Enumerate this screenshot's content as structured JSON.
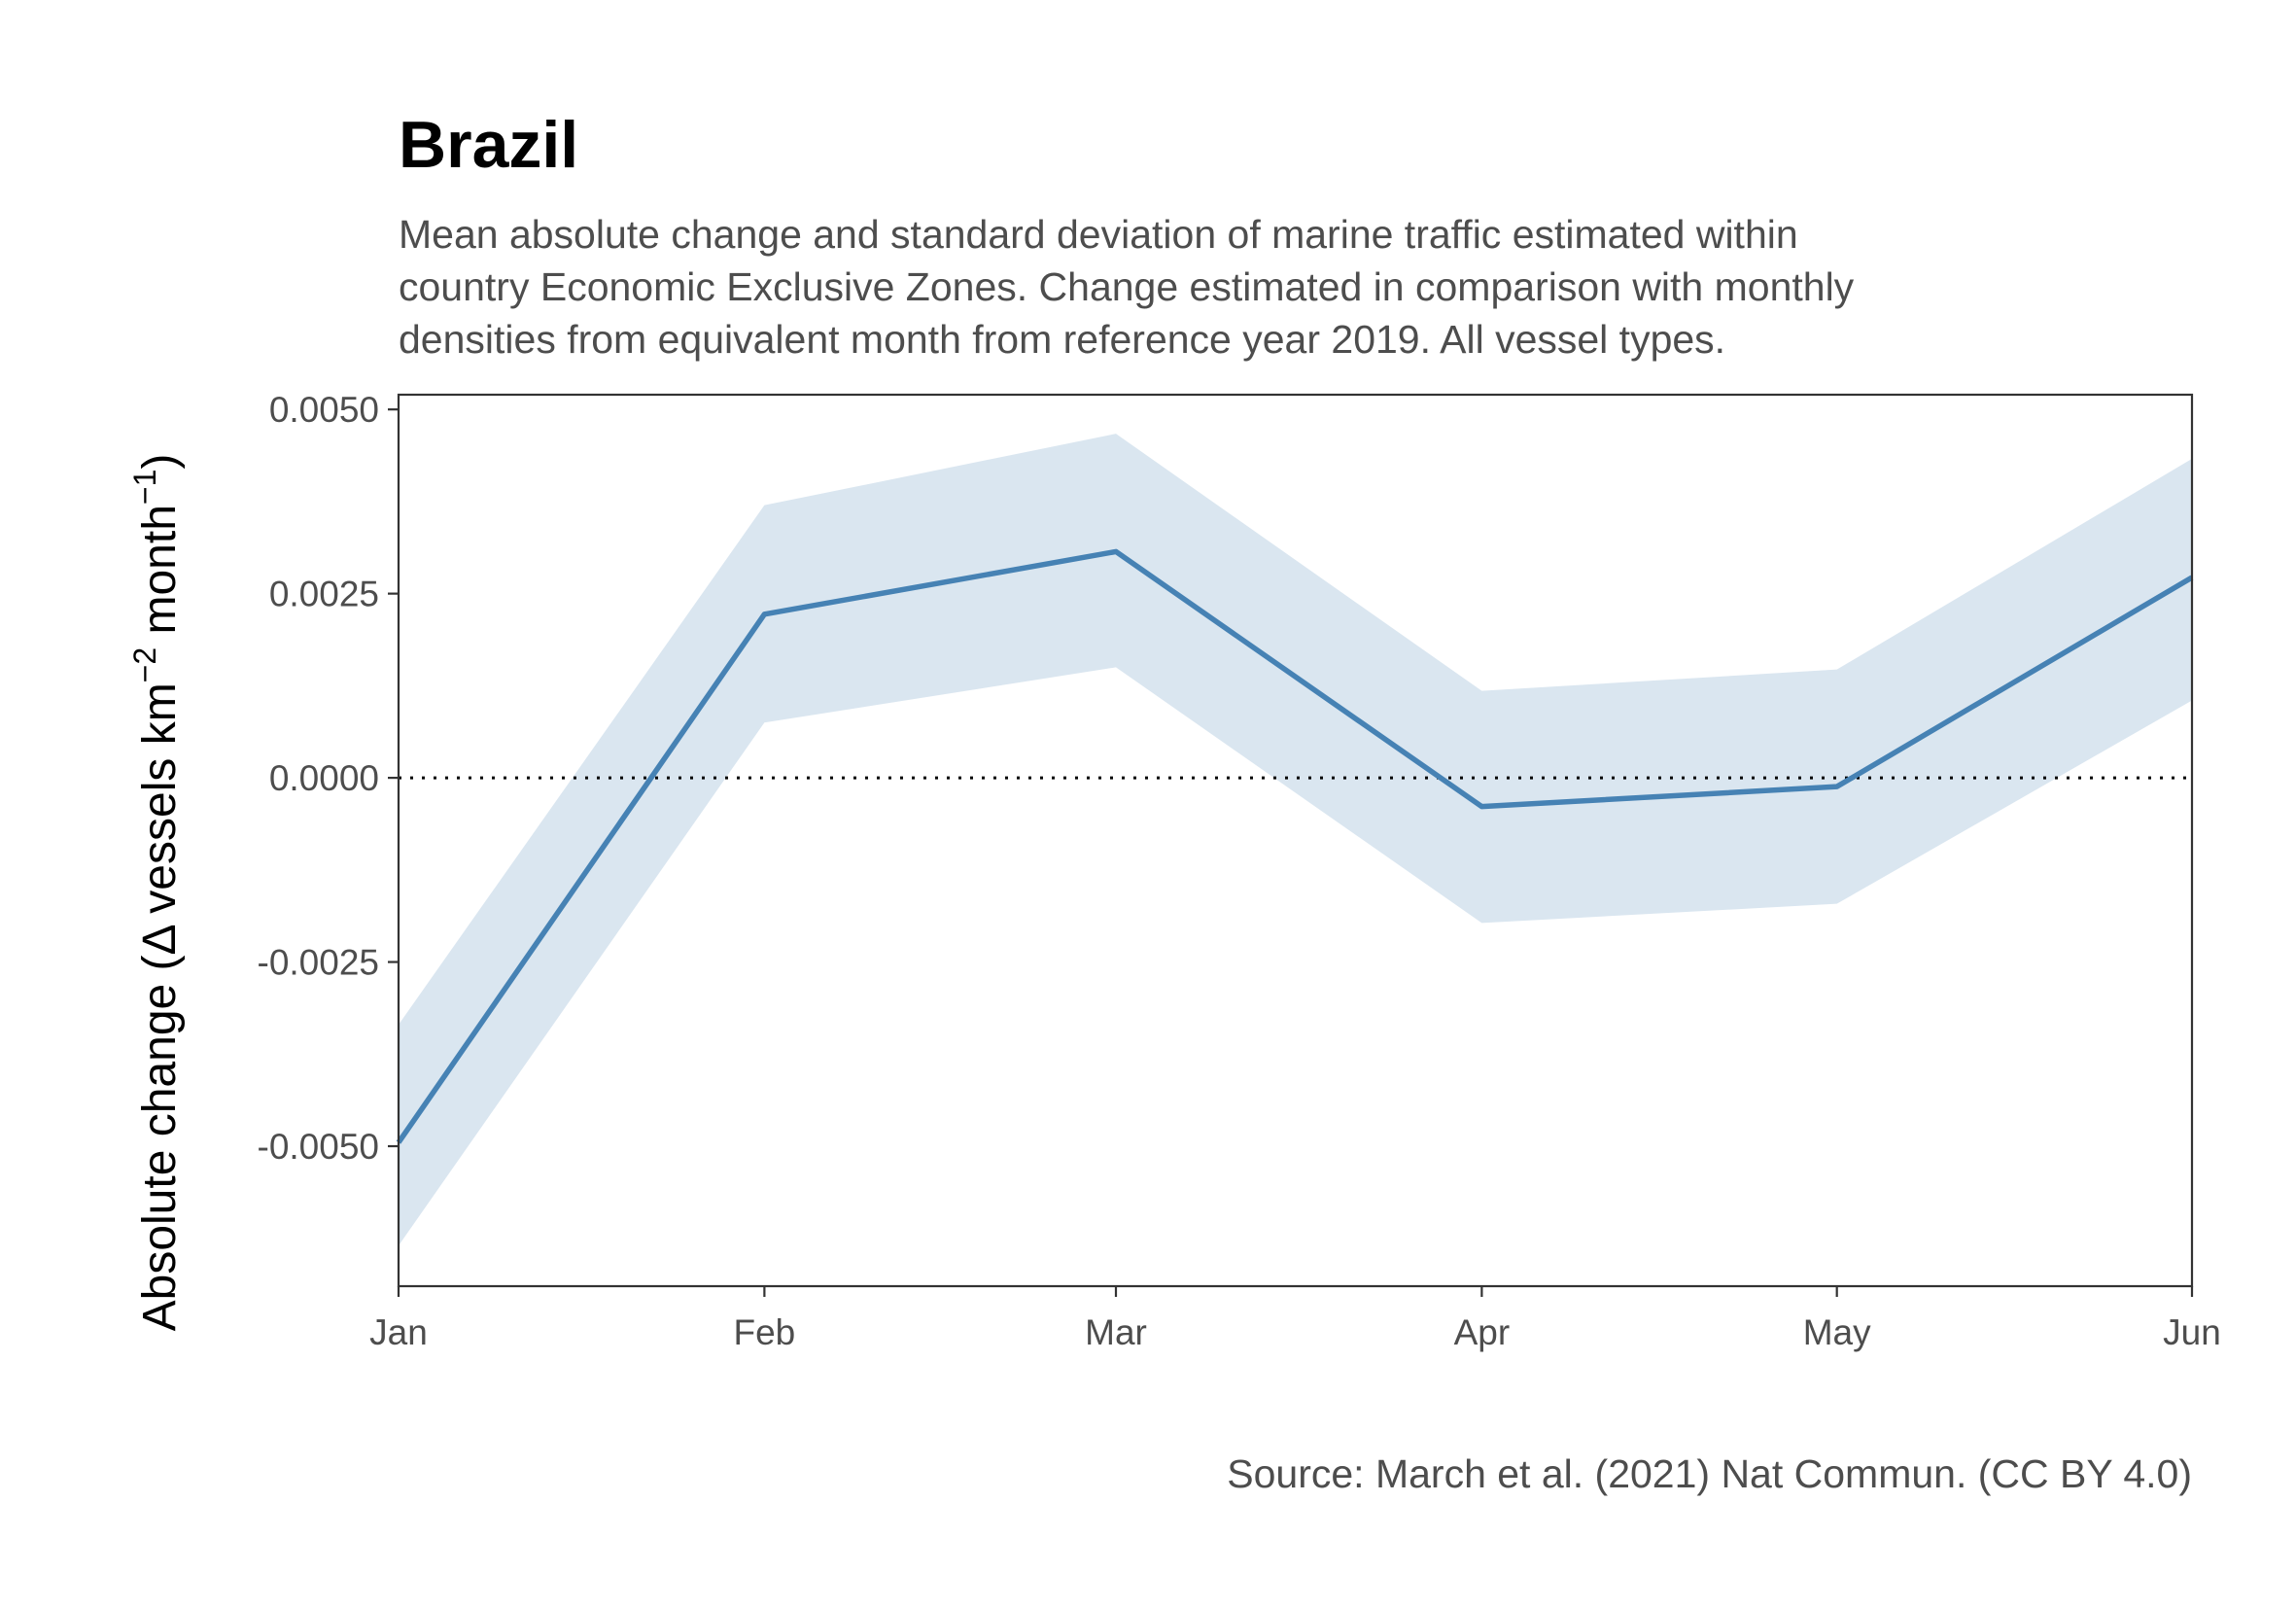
{
  "chart_data": {
    "type": "area",
    "title": "Brazil",
    "subtitle_lines": [
      "Mean absolute change and standard deviation of marine traffic estimated within",
      "country Economic Exclusive Zones. Change estimated in comparison with monthly",
      "densities from equivalent month from reference year 2019. All vessel types."
    ],
    "ylabel": {
      "prefix": "Absolute change (",
      "delta": "Δ",
      "text1": " vessels km",
      "sup1": "−2",
      "text2": " month",
      "sup2": "−1",
      "suffix": ")"
    },
    "caption": "Source: March et al. (2021) Nat Commun. (CC BY 4.0)",
    "categories": [
      "Jan",
      "Feb",
      "Mar",
      "Apr",
      "May",
      "Jun"
    ],
    "x_positions": [
      1,
      2.02,
      3,
      4.02,
      5.01,
      6
    ],
    "xlim": [
      1,
      6
    ],
    "ylim": [
      -0.0069,
      0.0052
    ],
    "y_ticks": [
      -0.005,
      -0.0025,
      0,
      0.0025,
      0.005
    ],
    "y_tick_labels": [
      "-0.0050",
      "-0.0025",
      "0.0000",
      "0.0025",
      "0.0050"
    ],
    "series": [
      {
        "mean": [
          -0.00495,
          0.00222,
          0.00307,
          -0.00039,
          -0.00012,
          0.00272
        ],
        "lower": [
          -0.00635,
          0.00075,
          0.0015,
          -0.00197,
          -0.00171,
          0.00105
        ],
        "upper": [
          -0.00335,
          0.0037,
          0.00467,
          0.00118,
          0.00147,
          0.00433
        ]
      }
    ],
    "reference_line": 0,
    "colors": {
      "line": "#4682b4",
      "ribbon": "#dae6f0",
      "axis": "#333333",
      "reference": "#000000"
    },
    "grid": false,
    "legend": "none"
  }
}
